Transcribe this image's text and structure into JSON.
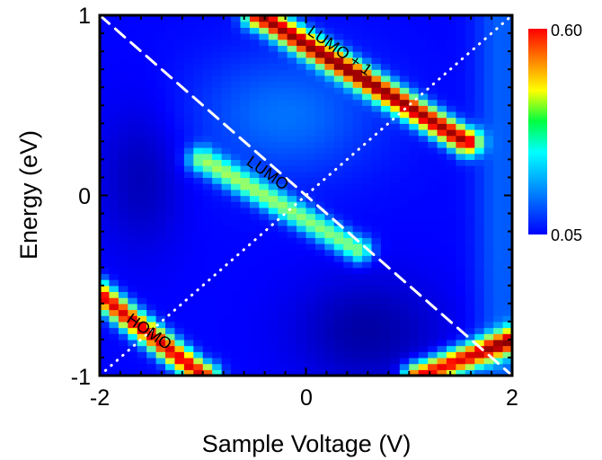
{
  "chart_data": {
    "type": "heatmap",
    "title": "",
    "xlabel": "Sample Voltage (V)",
    "ylabel": "Energy (eV)",
    "xlim": [
      -2,
      2
    ],
    "ylim": [
      -1,
      1
    ],
    "x_ticks": [
      -2,
      0,
      2
    ],
    "y_ticks": [
      -1,
      0,
      1
    ],
    "x_tick_labels": [
      "-2",
      "0",
      "2"
    ],
    "y_tick_labels": [
      "-1",
      "0",
      "1"
    ],
    "colorbar": {
      "min": 0.05,
      "max": 0.6,
      "min_label": "0.05",
      "max_label": "0.60",
      "colormap": "jet"
    },
    "annotations": [
      {
        "text": "LUMO + 1",
        "x": 0.3,
        "y": 0.78,
        "angle_deg": 35
      },
      {
        "text": "LUMO",
        "x": -0.4,
        "y": 0.1,
        "angle_deg": 35
      },
      {
        "text": "HOMO",
        "x": -1.55,
        "y": -0.78,
        "angle_deg": 35
      }
    ],
    "guide_lines": [
      {
        "style": "dashed",
        "color": "#ffffff",
        "from": [
          -2,
          1
        ],
        "to": [
          2,
          -1
        ]
      },
      {
        "style": "dotted",
        "color": "#ffffff",
        "from": [
          -2,
          -1
        ],
        "to": [
          2,
          1
        ]
      }
    ],
    "bands": [
      {
        "name": "LUMO + 1",
        "start": [
          -0.45,
          1.0
        ],
        "end": [
          1.55,
          0.3
        ],
        "peak": 0.58
      },
      {
        "name": "LUMO",
        "start": [
          -1.0,
          0.2
        ],
        "end": [
          0.5,
          -0.3
        ],
        "peak": 0.33
      },
      {
        "name": "HOMO",
        "start": [
          -2.0,
          -0.55
        ],
        "end": [
          -1.0,
          -1.0
        ],
        "peak": 0.55
      },
      {
        "name": "",
        "start": [
          1.1,
          -1.0
        ],
        "end": [
          2.0,
          -0.8
        ],
        "peak": 0.55
      }
    ],
    "background_level": 0.12,
    "grid": false
  }
}
